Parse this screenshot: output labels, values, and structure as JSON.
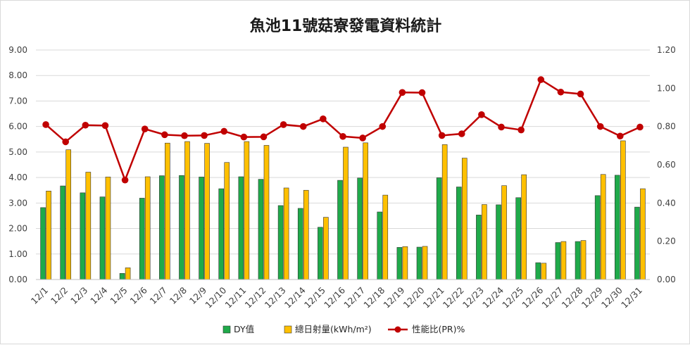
{
  "chart_data": {
    "type": "bar",
    "title": "魚池11號菇寮發電資料統計",
    "categories": [
      "12/1",
      "12/2",
      "12/3",
      "12/4",
      "12/5",
      "12/6",
      "12/7",
      "12/8",
      "12/9",
      "12/10",
      "12/11",
      "12/12",
      "12/13",
      "12/14",
      "12/15",
      "12/16",
      "12/17",
      "12/18",
      "12/19",
      "12/20",
      "12/21",
      "12/22",
      "12/23",
      "12/24",
      "12/25",
      "12/26",
      "12/27",
      "12/28",
      "12/29",
      "12/30",
      "12/31"
    ],
    "y_left": {
      "min": 0,
      "max": 9,
      "step": 1,
      "ticks": [
        "0.00",
        "1.00",
        "2.00",
        "3.00",
        "4.00",
        "5.00",
        "6.00",
        "7.00",
        "8.00",
        "9.00"
      ]
    },
    "y_right": {
      "min": 0,
      "max": 1.2,
      "step": 0.2,
      "ticks": [
        "0.00",
        "0.20",
        "0.40",
        "0.60",
        "0.80",
        "1.00",
        "1.20"
      ]
    },
    "grid": true,
    "legend_position": "bottom",
    "series": [
      {
        "name": "DY值",
        "kind": "bar",
        "axis": "left",
        "color": "#1faa4a",
        "values": [
          2.82,
          3.67,
          3.4,
          3.24,
          0.24,
          3.19,
          4.07,
          4.08,
          4.02,
          3.56,
          4.03,
          3.93,
          2.9,
          2.79,
          2.05,
          3.89,
          3.98,
          2.65,
          1.26,
          1.27,
          3.99,
          3.63,
          2.53,
          2.93,
          3.21,
          0.66,
          1.45,
          1.49,
          3.29,
          4.09,
          2.84
        ]
      },
      {
        "name": "總日射量(kWh/m²)",
        "kind": "bar",
        "axis": "left",
        "color": "#ffc000",
        "values": [
          3.47,
          5.09,
          4.21,
          4.02,
          0.46,
          4.03,
          5.35,
          5.41,
          5.34,
          4.59,
          5.41,
          5.26,
          3.59,
          3.5,
          2.44,
          5.19,
          5.36,
          3.31,
          1.29,
          1.3,
          5.29,
          4.76,
          2.94,
          3.68,
          4.11,
          0.64,
          1.49,
          1.53,
          4.12,
          5.44,
          3.56
        ]
      },
      {
        "name": "性能比(PR)%",
        "kind": "line",
        "axis": "right",
        "color": "#c00000",
        "values": [
          0.81,
          0.72,
          0.807,
          0.805,
          0.52,
          0.787,
          0.757,
          0.752,
          0.753,
          0.775,
          0.745,
          0.746,
          0.81,
          0.8,
          0.84,
          0.748,
          0.74,
          0.8,
          0.978,
          0.977,
          0.753,
          0.762,
          0.862,
          0.797,
          0.782,
          1.045,
          0.98,
          0.97,
          0.8,
          0.75,
          0.797
        ]
      }
    ]
  }
}
